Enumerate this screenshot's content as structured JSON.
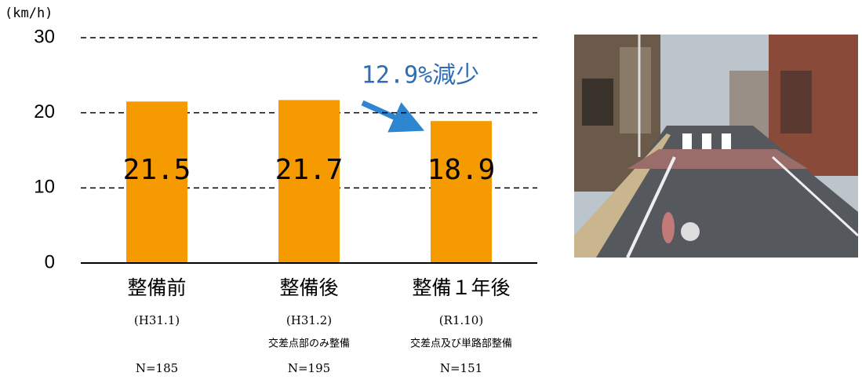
{
  "chart_data": {
    "type": "bar",
    "y_label": "(km/h)",
    "categories": [
      "整備前",
      "整備後",
      "整備１年後"
    ],
    "periods": [
      "(H31.1)",
      "(H31.2)",
      "(R1.10)"
    ],
    "notes": [
      null,
      "交差点部のみ整備",
      "交差点及び単路部整備"
    ],
    "sample_sizes": [
      "N=185",
      "N=195",
      "N=151"
    ],
    "values": [
      21.5,
      21.7,
      18.9
    ],
    "color": "#f59a00",
    "annotation": "12.9%減少",
    "ylim": [
      0,
      30
    ],
    "yticks": [
      0,
      10,
      20,
      30
    ],
    "grid": true
  }
}
